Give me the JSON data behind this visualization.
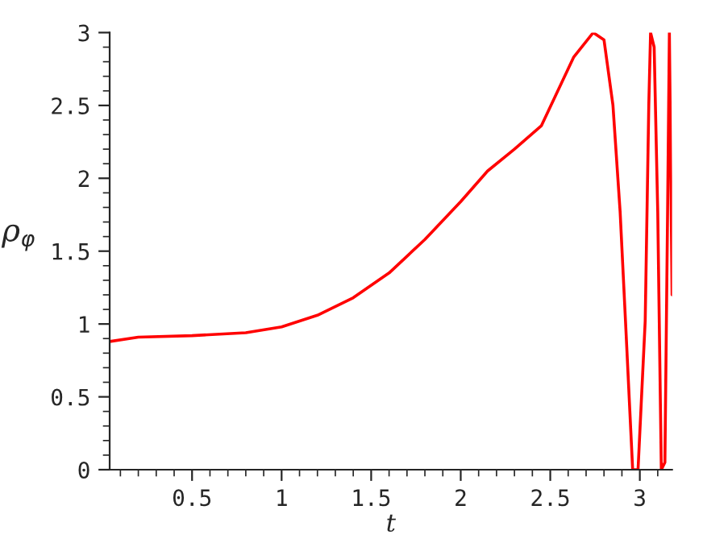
{
  "chart_data": {
    "type": "line",
    "xlabel": "t",
    "ylabel": "ρ$_{φ}$",
    "x": [
      0.04,
      0.2,
      0.5,
      0.8,
      1.0,
      1.2,
      1.4,
      1.6,
      1.8,
      2.0,
      2.15,
      2.3,
      2.45,
      2.63,
      2.74,
      2.8,
      2.85,
      2.89,
      2.92,
      2.96,
      2.99,
      3.03,
      3.05,
      3.06,
      3.08,
      3.1,
      3.12,
      3.14,
      3.155,
      3.165,
      3.18
    ],
    "series": [
      {
        "color": "#ff0000",
        "values": [
          0.88,
          0.91,
          0.92,
          0.94,
          0.98,
          1.06,
          1.18,
          1.35,
          1.58,
          1.84,
          2.05,
          2.2,
          2.36,
          2.83,
          3.0,
          2.95,
          2.5,
          1.77,
          1.02,
          0.0,
          0.0,
          1.02,
          2.5,
          3.0,
          2.9,
          1.77,
          0.0,
          0.05,
          1.77,
          3.0,
          1.2
        ]
      }
    ],
    "xlim": [
      0.04,
      3.18
    ],
    "ylim": [
      0,
      3
    ],
    "xticks": [
      0.5,
      1,
      1.5,
      2,
      2.5,
      3
    ],
    "yticks": [
      0,
      0.5,
      1,
      1.5,
      2,
      2.5,
      3
    ],
    "grid": false,
    "legend": false,
    "line_style": "solid"
  }
}
